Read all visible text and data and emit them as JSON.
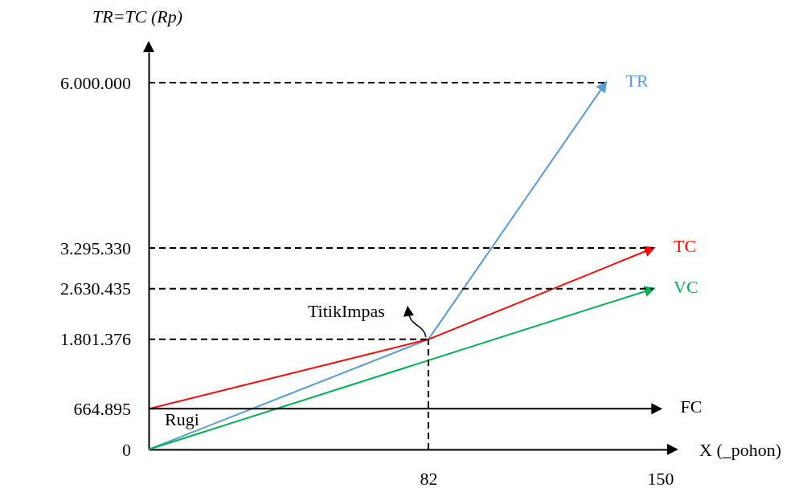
{
  "chart_data": {
    "type": "line",
    "ylabel": "TR=TC (Rp)",
    "xlabel": "X (_pohon)",
    "xlim": [
      0,
      152
    ],
    "xticks": [
      82,
      150
    ],
    "ylim": [
      0,
      6500000
    ],
    "yticks": [
      0,
      {
        "value": 664895,
        "label": "664.895"
      },
      {
        "value": 1801376,
        "label": "1.801.376"
      },
      {
        "value": 2630435,
        "label": "2.630.435"
      },
      {
        "value": 3295330,
        "label": "3.295.330"
      },
      {
        "value": 6000000,
        "label": "6.000.000"
      }
    ],
    "grid": false,
    "marker": "none",
    "series": [
      {
        "name": "TR",
        "color": "#5b9bd5",
        "x": [
          0,
          82,
          134
        ],
        "values": [
          0,
          1801376,
          6000000
        ],
        "line_style": "solid"
      },
      {
        "name": "TC",
        "color": "#ff0000",
        "x": [
          0,
          82,
          148
        ],
        "values": [
          664895,
          1801376,
          3295330
        ],
        "line_style": "solid"
      },
      {
        "name": "VC",
        "color": "#00b050",
        "x": [
          0,
          148
        ],
        "values": [
          0,
          2630435
        ],
        "line_style": "solid"
      },
      {
        "name": "FC",
        "color": "#000000",
        "x": [
          0,
          150
        ],
        "values": [
          664895,
          664895
        ],
        "line_style": "solid"
      },
      {
        "color": "#000000",
        "x": [
          0,
          134
        ],
        "values": [
          6000000,
          6000000
        ],
        "line_style": "dashed"
      },
      {
        "color": "#000000",
        "x": [
          0,
          148
        ],
        "values": [
          3295330,
          3295330
        ],
        "line_style": "dashed"
      },
      {
        "color": "#000000",
        "x": [
          0,
          148
        ],
        "values": [
          2630435,
          2630435
        ],
        "line_style": "dashed"
      },
      {
        "color": "#000000",
        "x": [
          0,
          82
        ],
        "values": [
          1801376,
          1801376
        ],
        "line_style": "dashed"
      },
      {
        "color": "#000000",
        "x": [
          82,
          82
        ],
        "values": [
          0,
          1801376
        ],
        "line_style": "dashed"
      }
    ],
    "annotations": [
      {
        "text": "TitikImpas",
        "x": 82,
        "y": 1801376
      },
      "Rugi"
    ]
  }
}
